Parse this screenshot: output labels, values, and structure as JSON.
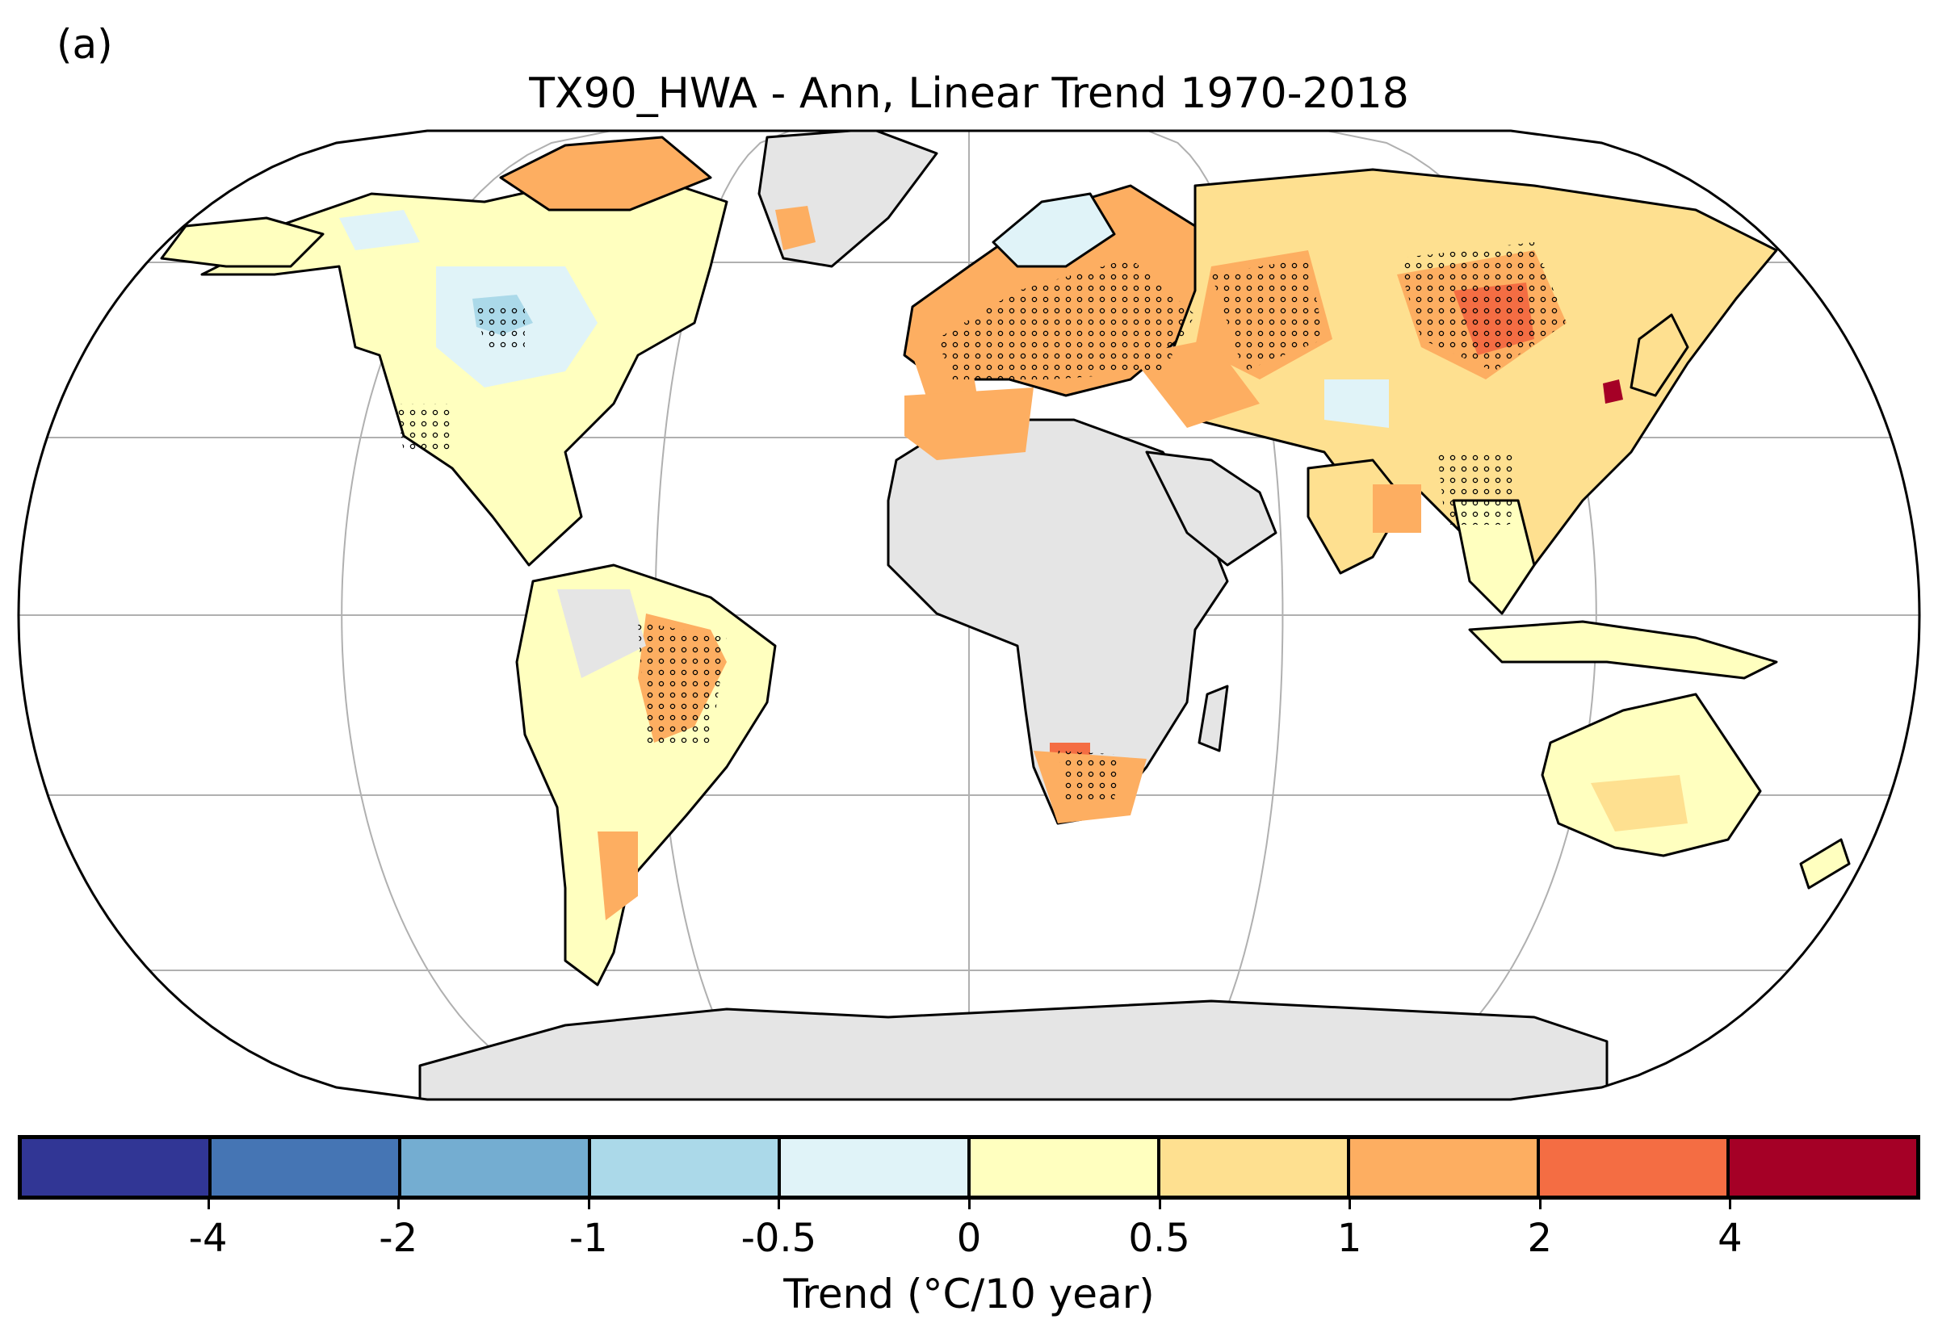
{
  "panel_label": "(a)",
  "title": "TX90_HWA - Ann, Linear Trend 1970-2018",
  "colorbar": {
    "label": "Trend (°C/10 year)",
    "colors": [
      "#313695",
      "#4575b4",
      "#74add1",
      "#abd9e9",
      "#e0f3f8",
      "#ffffbf",
      "#fee090",
      "#fdae61",
      "#f46d43",
      "#a50026"
    ],
    "tick_labels": [
      "-4",
      "-2",
      "-1",
      "-0.5",
      "0",
      "0.5",
      "1",
      "2",
      "4"
    ]
  },
  "legend_meaning": {
    "no_data_color": "#e5e5e5",
    "stippling": "significant trend"
  },
  "map": {
    "projection": "Robinson",
    "ocean_color": "#ffffff",
    "graticule_color": "#b0b0b0",
    "coastline_color": "#000000"
  }
}
